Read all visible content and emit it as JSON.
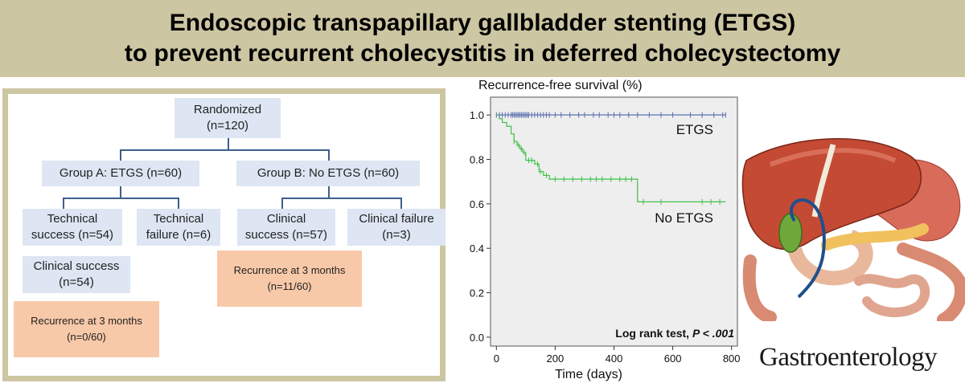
{
  "title": {
    "line1": "Endoscopic transpapillary gallbladder stenting (ETGS)",
    "line2": "to prevent recurrent cholecystitis in deferred cholecystectomy"
  },
  "flowchart": {
    "randomized": {
      "line1": "Randomized",
      "line2": "(n=120)"
    },
    "group_a": "Group A: ETGS (n=60)",
    "group_b": "Group B: No ETGS (n=60)",
    "a_tech_success": {
      "line1": "Technical",
      "line2": "success (n=54)"
    },
    "a_tech_failure": {
      "line1": "Technical",
      "line2": "failure (n=6)"
    },
    "a_clin_success": {
      "line1": "Clinical success",
      "line2": "(n=54)"
    },
    "a_recurrence": {
      "line1": "Recurrence at 3 months",
      "line2": "(n=0/60)"
    },
    "b_clin_success": {
      "line1": "Clinical",
      "line2": "success (n=57)"
    },
    "b_clin_failure": {
      "line1": "Clinical failure",
      "line2": "(n=3)"
    },
    "b_recurrence": {
      "line1": "Recurrence at 3 months",
      "line2": "(n=11/60)"
    }
  },
  "chart_data": {
    "type": "line",
    "title": "Recurrence-free survival (%)",
    "xlabel": "Time (days)",
    "ylabel": "",
    "xlim": [
      -20,
      820
    ],
    "ylim": [
      -0.04,
      1.08
    ],
    "x_ticks": [
      0,
      200,
      400,
      600,
      800
    ],
    "y_ticks": [
      0.0,
      0.2,
      0.4,
      0.6,
      0.8,
      1.0
    ],
    "y_tick_labels": [
      "0.0",
      "0.2",
      "0.4",
      "0.6",
      "0.8",
      "1.0"
    ],
    "annotation": {
      "prefix": "Log rank test, ",
      "p_label": "P < .001"
    },
    "colors": {
      "etgs": "#5a6fb0",
      "no_etgs": "#3fbf4a",
      "plot_bg": "#eeeeee"
    },
    "series": [
      {
        "name": "ETGS",
        "x": [
          0,
          780
        ],
        "y": [
          1.0,
          1.0
        ],
        "censor_x": [
          0,
          10,
          20,
          30,
          40,
          50,
          55,
          60,
          65,
          70,
          75,
          80,
          85,
          90,
          95,
          100,
          105,
          110,
          120,
          130,
          140,
          150,
          160,
          170,
          180,
          200,
          220,
          250,
          280,
          300,
          330,
          350,
          380,
          400,
          420,
          450,
          480,
          520,
          560,
          600,
          660,
          700,
          740,
          770,
          780
        ]
      },
      {
        "name": "No ETGS",
        "x": [
          0,
          10,
          20,
          35,
          50,
          60,
          70,
          80,
          90,
          100,
          130,
          145,
          160,
          180,
          480,
          780
        ],
        "y": [
          1.0,
          0.983,
          0.966,
          0.949,
          0.915,
          0.881,
          0.864,
          0.847,
          0.83,
          0.796,
          0.779,
          0.745,
          0.728,
          0.711,
          0.609,
          0.609
        ],
        "censor_x": [
          60,
          75,
          85,
          95,
          110,
          120,
          140,
          150,
          170,
          200,
          230,
          260,
          290,
          320,
          340,
          360,
          390,
          420,
          440,
          460,
          500,
          560,
          700,
          730,
          760
        ]
      }
    ]
  },
  "logo": "Gastroenterology"
}
